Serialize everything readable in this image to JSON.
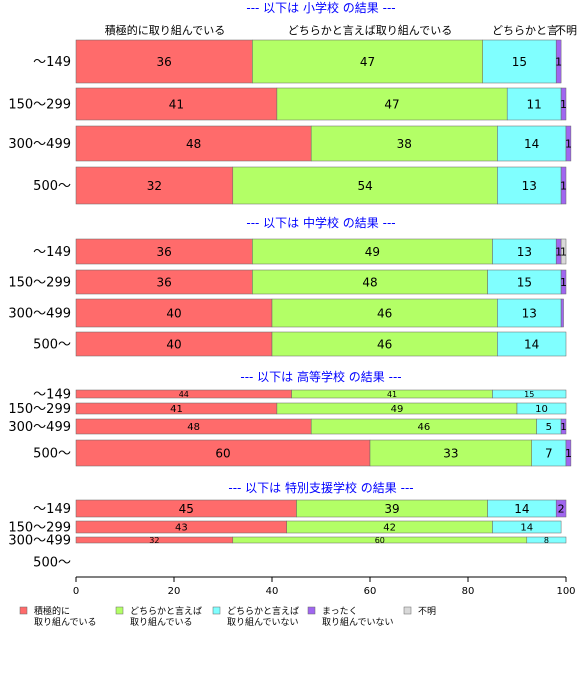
{
  "chart_data": {
    "type": "bar",
    "orientation": "horizontal",
    "stacked": true,
    "xlim": [
      0,
      100
    ],
    "x_ticks": [
      0,
      20,
      40,
      60,
      80,
      100
    ],
    "series_names": [
      "積極的に取り組んでいる",
      "どちらかと言えば取り組んでいる",
      "どちらかと言えば取り組んでいない",
      "まったく取り組んでいない",
      "不明"
    ],
    "colors": [
      "#ff6b6b",
      "#b3ff66",
      "#80ffff",
      "#a066f0",
      "#d9d9d9"
    ],
    "top_labels": [
      "積極的に取り組んでいる",
      "どちらかと言えば取り組んでいる",
      "どちらかと言",
      "不明"
    ],
    "legend": [
      {
        "line1": "積極的に",
        "line2": "取り組んでいる"
      },
      {
        "line1": "どちらかと言えば",
        "line2": "取り組んでいる"
      },
      {
        "line1": "どちらかと言えば",
        "line2": "取り組んでいない"
      },
      {
        "line1": "まったく",
        "line2": "取り組んでいない"
      },
      {
        "line1": "不明",
        "line2": ""
      }
    ],
    "panels": [
      {
        "title": "--- 以下は 小学校 の結果 ---",
        "rows": [
          {
            "category": "～149",
            "values": [
              36,
              47,
              15,
              1,
              0
            ]
          },
          {
            "category": "150～299",
            "values": [
              41,
              47,
              11,
              1,
              0
            ]
          },
          {
            "category": "300～499",
            "values": [
              48,
              38,
              14,
              1,
              0
            ]
          },
          {
            "category": "500～",
            "values": [
              32,
              54,
              13,
              1,
              0
            ]
          }
        ]
      },
      {
        "title": "--- 以下は 中学校 の結果 ---",
        "rows": [
          {
            "category": "～149",
            "values": [
              36,
              49,
              13,
              1,
              1
            ]
          },
          {
            "category": "150～299",
            "values": [
              36,
              48,
              15,
              1,
              0
            ]
          },
          {
            "category": "300～499",
            "values": [
              40,
              46,
              13,
              0.5,
              0
            ]
          },
          {
            "category": "500～",
            "values": [
              40,
              46,
              14,
              0,
              0
            ]
          }
        ]
      },
      {
        "title": "--- 以下は 高等学校 の結果 ---",
        "rows": [
          {
            "category": "～149",
            "values": [
              44,
              41,
              15,
              0,
              0
            ]
          },
          {
            "category": "150～299",
            "values": [
              41,
              49,
              10,
              0,
              0
            ]
          },
          {
            "category": "300～499",
            "values": [
              48,
              46,
              5,
              1,
              0
            ]
          },
          {
            "category": "500～",
            "values": [
              60,
              33,
              7,
              1,
              0
            ]
          }
        ]
      },
      {
        "title": "--- 以下は 特別支援学校 の結果 ---",
        "rows": [
          {
            "category": "～149",
            "values": [
              45,
              39,
              14,
              2,
              0
            ]
          },
          {
            "category": "150～299",
            "values": [
              43,
              42,
              14,
              0,
              0
            ]
          },
          {
            "category": "300～499",
            "values": [
              32,
              60,
              8,
              0,
              0
            ]
          },
          {
            "category": "500～",
            "values": []
          }
        ]
      }
    ]
  }
}
